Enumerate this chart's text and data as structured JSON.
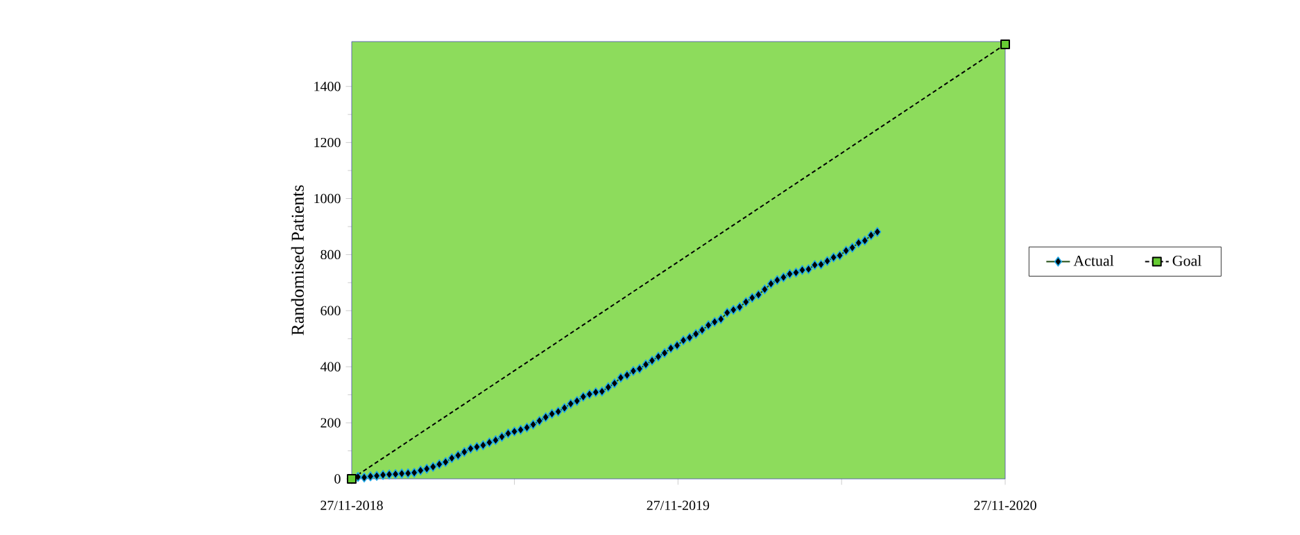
{
  "chart_data": {
    "type": "line",
    "ylabel": "Randomised Patients",
    "xlim": [
      "2018-11-27",
      "2020-11-27"
    ],
    "xticks": [
      {
        "value": "2018-11-27",
        "label": "27/11-2018"
      },
      {
        "value": "2019-05-28",
        "label": null
      },
      {
        "value": "2019-11-27",
        "label": "27/11-2019"
      },
      {
        "value": "2020-05-28",
        "label": null
      },
      {
        "value": "2020-11-27",
        "label": "27/11-2020"
      }
    ],
    "ylim": [
      0,
      1560
    ],
    "yticks": [
      0,
      200,
      400,
      600,
      800,
      1000,
      1200,
      1400
    ],
    "legend": "right",
    "series": [
      {
        "name": "Actual",
        "color": "#000000",
        "marker": "diamond",
        "line_style": "solid",
        "x": [
          "2018-12-04",
          "2018-12-11",
          "2018-12-18",
          "2018-12-25",
          "2019-01-01",
          "2019-01-08",
          "2019-01-15",
          "2019-01-22",
          "2019-01-29",
          "2019-02-05",
          "2019-02-12",
          "2019-02-19",
          "2019-02-26",
          "2019-03-05",
          "2019-03-12",
          "2019-03-19",
          "2019-03-26",
          "2019-04-02",
          "2019-04-09",
          "2019-04-16",
          "2019-04-23",
          "2019-04-30",
          "2019-05-07",
          "2019-05-14",
          "2019-05-21",
          "2019-05-28",
          "2019-06-04",
          "2019-06-11",
          "2019-06-18",
          "2019-06-25",
          "2019-07-02",
          "2019-07-09",
          "2019-07-16",
          "2019-07-23",
          "2019-07-30",
          "2019-08-06",
          "2019-08-13",
          "2019-08-20",
          "2019-08-27",
          "2019-09-03",
          "2019-09-10",
          "2019-09-17",
          "2019-09-24",
          "2019-10-01",
          "2019-10-08",
          "2019-10-15",
          "2019-10-22",
          "2019-10-29",
          "2019-11-05",
          "2019-11-12",
          "2019-11-19",
          "2019-11-26",
          "2019-12-03",
          "2019-12-10",
          "2019-12-17",
          "2019-12-24",
          "2019-12-31",
          "2020-01-07",
          "2020-01-14",
          "2020-01-21",
          "2020-01-28",
          "2020-02-04",
          "2020-02-11",
          "2020-02-18",
          "2020-02-25",
          "2020-03-03",
          "2020-03-10",
          "2020-03-17",
          "2020-03-24",
          "2020-03-31",
          "2020-04-07",
          "2020-04-14",
          "2020-04-21",
          "2020-04-28",
          "2020-05-05",
          "2020-05-12",
          "2020-05-19",
          "2020-05-26",
          "2020-06-02",
          "2020-06-09",
          "2020-06-16",
          "2020-06-23",
          "2020-06-30",
          "2020-07-07"
        ],
        "values": [
          7,
          5,
          9,
          11,
          14,
          16,
          17,
          19,
          20,
          22,
          30,
          36,
          43,
          52,
          60,
          74,
          84,
          96,
          108,
          114,
          120,
          130,
          138,
          150,
          162,
          169,
          175,
          183,
          194,
          207,
          220,
          232,
          240,
          253,
          268,
          278,
          293,
          302,
          309,
          312,
          327,
          341,
          361,
          370,
          385,
          393,
          408,
          422,
          436,
          449,
          466,
          476,
          494,
          504,
          517,
          531,
          548,
          560,
          570,
          593,
          603,
          613,
          631,
          646,
          657,
          676,
          696,
          709,
          719,
          731,
          736,
          745,
          748,
          763,
          765,
          777,
          790,
          797,
          814,
          825,
          842,
          850,
          869,
          881
        ]
      },
      {
        "name": "Goal",
        "color": "#000000",
        "marker": "square",
        "line_style": "dashed",
        "x": [
          "2018-11-27",
          "2020-11-27"
        ],
        "values": [
          0,
          1550
        ]
      }
    ]
  }
}
